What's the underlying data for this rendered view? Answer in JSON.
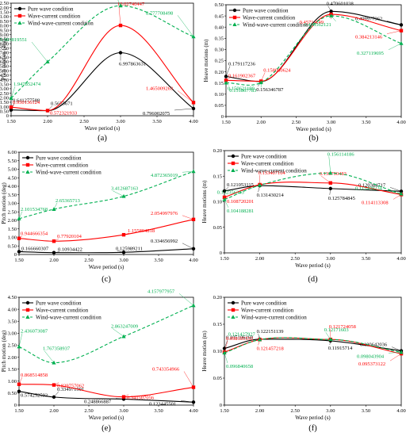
{
  "colors": {
    "black": "#000000",
    "red": "#ff0000",
    "green": "#00b050"
  },
  "chart_data": [
    {
      "panel": "(a)",
      "type": "line",
      "xlabel": "Wave period (s)",
      "ylabel": "Pitch motion (deg)",
      "xlim": [
        1.5,
        4.0
      ],
      "ylim": [
        0,
        12.5
      ],
      "xticks": [
        "1.50",
        "2.00",
        "2.50",
        "3.00",
        "3.50",
        "4.00"
      ],
      "yticks": [
        "0",
        "0.50",
        "1.00",
        "1.50",
        "2.00",
        "2.50",
        "3.00",
        "3.50",
        "4.00",
        "4.50",
        "5.00",
        "5.50",
        "6.00",
        "6.50",
        "7.00",
        "7.50",
        "8.00",
        "8.50",
        "9.00",
        "9.50",
        "10.00",
        "10.50",
        "11.00",
        "11.50",
        "12.00",
        "12.50"
      ],
      "legend": "top-left",
      "x": [
        1.5,
        2.0,
        3.0,
        4.0
      ],
      "series": [
        {
          "name": "Pure wave condition",
          "color": "#000000",
          "marker": "circle",
          "dashed": false,
          "values": [
            0.641277588,
            0.5655671,
            6.997863631,
            0.796002075
          ],
          "labels": [
            "0.641277588",
            "0.5655671",
            "6.997863631",
            "0.796002075"
          ]
        },
        {
          "name": "Wave-current condition",
          "color": "#ff0000",
          "marker": "square",
          "dashed": false,
          "values": [
            0.950136124,
            0.572321933,
            10.02740447,
            1.465009263
          ],
          "labels": [
            "0.950136124",
            "0.572321933",
            "10.02740447",
            "1.465009263"
          ]
        },
        {
          "name": "Wind-wave-current condition",
          "color": "#00b050",
          "marker": "triangle",
          "dashed": true,
          "values": [
            1.947852474,
            5.983819551,
            12.21058861,
            8.777708498
          ],
          "labels": [
            "1.947852474",
            "5.983819551",
            "12.21058861",
            "8.777708498"
          ]
        }
      ]
    },
    {
      "panel": "(b)",
      "type": "line",
      "xlabel": "Wave period (s)",
      "ylabel": "Heave motions (m)",
      "xlim": [
        1.5,
        4.0
      ],
      "ylim": [
        0,
        0.5
      ],
      "xticks": [
        "1.50",
        "2.00",
        "2.50",
        "3.00",
        "3.50",
        "4.00"
      ],
      "yticks": [
        "0",
        "0.05",
        "0.10",
        "0.15",
        "0.20",
        "0.25",
        "0.30",
        "0.35",
        "0.40",
        "0.45",
        "0.50"
      ],
      "legend": "top-left",
      "x": [
        1.5,
        2.0,
        3.0,
        4.0
      ],
      "series": [
        {
          "name": "Pure wave condition",
          "color": "#000000",
          "marker": "circle",
          "dashed": false,
          "values": [
            0.179117236,
            0.156346787,
            0.470601038,
            0.409977962
          ],
          "labels": [
            "0.179117236",
            "0.156346787",
            "0.470601038",
            "0.409977962"
          ]
        },
        {
          "name": "Wave-current condition",
          "color": "#ff0000",
          "marker": "square",
          "dashed": false,
          "values": [
            0.161902367,
            0.158080624,
            0.45711149,
            0.384213146
          ],
          "labels": [
            "0.161902367",
            "0.158080624",
            "0.45711149",
            "0.384213146"
          ]
        },
        {
          "name": "Wind-wave-current condition",
          "color": "#00b050",
          "marker": "triangle",
          "dashed": true,
          "values": [
            0.150621199,
            0.151867783,
            0.450562121,
            0.327119695
          ],
          "labels": [
            "0.150621199",
            "0.151867783",
            "0.450562121",
            "0.327119695"
          ]
        }
      ]
    },
    {
      "panel": "(c)",
      "type": "line",
      "xlabel": "Wave period (s)",
      "ylabel": "Pitch motion (deg)",
      "xlim": [
        1.5,
        4.0
      ],
      "ylim": [
        0,
        6.0
      ],
      "xticks": [
        "1.50",
        "2.00",
        "2.50",
        "3.00",
        "3.50",
        "4.00"
      ],
      "yticks": [
        "0",
        "0.50",
        "1.00",
        "1.50",
        "2.00",
        "2.50",
        "3.00",
        "3.50",
        "4.00",
        "4.50",
        "5.00",
        "5.50",
        "6.00"
      ],
      "legend": "top-left",
      "x": [
        1.5,
        2.0,
        3.0,
        4.0
      ],
      "series": [
        {
          "name": "Pure wave condition",
          "color": "#000000",
          "marker": "circle",
          "dashed": false,
          "values": [
            0.166660307,
            0.10934422,
            0.125989211,
            0.334656992
          ],
          "labels": [
            "0.166660307",
            "0.10934422",
            "0.125989211",
            "0.334656992"
          ]
        },
        {
          "name": "Wave-current condition",
          "color": "#ff0000",
          "marker": "square",
          "dashed": false,
          "values": [
            0.944666354,
            0.77920104,
            1.155894818,
            2.054997976
          ],
          "labels": [
            "0.944666354",
            "0.77920104",
            "1.155894818",
            "2.054997976"
          ]
        },
        {
          "name": "Wind-wave-current condition",
          "color": "#00b050",
          "marker": "triangle",
          "dashed": true,
          "values": [
            2.101534768,
            2.65365713,
            3.412687163,
            4.872365019
          ],
          "labels": [
            "2.101534768",
            "2.65365713",
            "3.412687163",
            "4.872365019"
          ]
        }
      ]
    },
    {
      "panel": "(d)",
      "type": "line",
      "xlabel": "Wave period (s)",
      "ylabel": "Heave motions (m)",
      "xlim": [
        1.5,
        4.0
      ],
      "ylim": [
        0,
        0.2
      ],
      "xticks": [
        "1.50",
        "2.00",
        "2.50",
        "3.00",
        "3.50",
        "4.00"
      ],
      "yticks": [
        "0",
        "0.05",
        "0.10",
        "0.15",
        "0.20"
      ],
      "legend": "top-left",
      "x": [
        1.5,
        2.0,
        3.0,
        4.0
      ],
      "series": [
        {
          "name": "Pure wave condition",
          "color": "#000000",
          "marker": "circle",
          "dashed": false,
          "values": [
            0.121053115,
            0.131430214,
            0.125784845,
            0.120384717
          ],
          "labels": [
            "0.121053115",
            "0.131430214",
            "0.125784845",
            "0.120384717"
          ]
        },
        {
          "name": "Wave-current condition",
          "color": "#ff0000",
          "marker": "square",
          "dashed": false,
          "values": [
            0.108720201,
            0.133407104,
            0.136790483,
            0.114113308
          ],
          "labels": [
            "0.108720201",
            "0.133407104",
            "0.136790483",
            "0.114113308"
          ]
        },
        {
          "name": "Wind-wave-current condition",
          "color": "#00b050",
          "marker": "triangle",
          "dashed": true,
          "values": [
            0.104188281,
            0.132356343,
            0.156114186,
            0.115408234
          ],
          "labels": [
            "0.104188281",
            "0.132356343",
            "0.156114186",
            "0.115408234"
          ]
        }
      ]
    },
    {
      "panel": "(e)",
      "type": "line",
      "xlabel": "Wave period (s)",
      "ylabel": "Pitch motion (deg)",
      "xlim": [
        1.5,
        4.0
      ],
      "ylim": [
        0,
        4.5
      ],
      "xticks": [
        "1.50",
        "2.00",
        "2.50",
        "3.00",
        "3.50",
        "4.00"
      ],
      "yticks": [
        "0",
        "0.50",
        "1.00",
        "1.50",
        "2.00",
        "2.50",
        "3.00",
        "3.50",
        "4.00",
        "4.50"
      ],
      "legend": "top-left",
      "x": [
        1.5,
        2.0,
        3.0,
        4.0
      ],
      "series": [
        {
          "name": "Pure wave condition",
          "color": "#000000",
          "marker": "circle",
          "dashed": false,
          "values": [
            0.574252593,
            0.334971991,
            0.248866887,
            0.123445501
          ],
          "labels": [
            "0.574252593",
            "0.334971991",
            "0.248866887",
            "0.123445501"
          ]
        },
        {
          "name": "Wave-current condition",
          "color": "#ff0000",
          "marker": "square",
          "dashed": false,
          "values": [
            0.868514858,
            0.839757062,
            0.341507056,
            0.743354966
          ],
          "labels": [
            "0.868514858",
            "0.839757062",
            "0.341507056",
            "0.743354966"
          ]
        },
        {
          "name": "Wind-wave-current condition",
          "color": "#00b050",
          "marker": "triangle",
          "dashed": true,
          "values": [
            2.436073087,
            1.767358937,
            2.863247009,
            4.157977957
          ],
          "labels": [
            "2.436073087",
            "1.767358937",
            "2.863247009",
            "4.157977957"
          ]
        }
      ]
    },
    {
      "panel": "(f)",
      "type": "line",
      "xlabel": "Wave period (s)",
      "ylabel": "Heave motion (m)",
      "xlim": [
        1.5,
        4.0
      ],
      "ylim": [
        0,
        0.2
      ],
      "xticks": [
        "1.50",
        "2.00",
        "2.50",
        "3.00",
        "3.50",
        "4.00"
      ],
      "yticks": [
        "0",
        "0.05",
        "0.10",
        "0.15",
        "0.20"
      ],
      "legend": "top-left",
      "x": [
        1.5,
        2.0,
        3.0,
        4.0
      ],
      "series": [
        {
          "name": "Pure wave condition",
          "color": "#000000",
          "marker": "circle",
          "dashed": false,
          "values": [
            0.105106268,
            0.122151139,
            0.11915714,
            0.100642036
          ],
          "labels": [
            "0.105106268",
            "0.122151139",
            "0.11915714",
            "0.100642036"
          ]
        },
        {
          "name": "Wave-current condition",
          "color": "#ff0000",
          "marker": "square",
          "dashed": false,
          "values": [
            0.098181532,
            0.121457218,
            0.121724058,
            0.095373122
          ],
          "labels": [
            "0.098181532",
            "0.121457218",
            "0.121724058",
            "0.095373122"
          ]
        },
        {
          "name": "Wind-wave-current condition",
          "color": "#00b050",
          "marker": "triangle",
          "dashed": true,
          "values": [
            0.096840658,
            0.121427927,
            0.12171603,
            0.098043904
          ],
          "labels": [
            "0.096840658",
            "0.121427927",
            "0.12171603",
            "0.098043904"
          ]
        }
      ]
    }
  ]
}
